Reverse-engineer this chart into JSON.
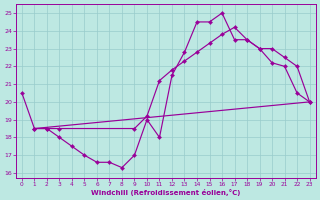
{
  "xlabel": "Windchill (Refroidissement éolien,°C)",
  "bg_color": "#bde8e2",
  "line_color": "#990099",
  "grid_color": "#99cccc",
  "xlim_min": -0.5,
  "xlim_max": 23.5,
  "ylim_min": 15.7,
  "ylim_max": 25.5,
  "xticks": [
    0,
    1,
    2,
    3,
    4,
    5,
    6,
    7,
    8,
    9,
    10,
    11,
    12,
    13,
    14,
    15,
    16,
    17,
    18,
    19,
    20,
    21,
    22,
    23
  ],
  "yticks": [
    16,
    17,
    18,
    19,
    20,
    21,
    22,
    23,
    24,
    25
  ],
  "line1_x": [
    0,
    1,
    2,
    3,
    4,
    5,
    6,
    7,
    8,
    9,
    10,
    11,
    12,
    13,
    14,
    15,
    16,
    17,
    18,
    19,
    20,
    21,
    22,
    23
  ],
  "line1_y": [
    20.5,
    18.5,
    18.5,
    18.0,
    17.5,
    17.0,
    16.6,
    16.6,
    16.3,
    17.0,
    19.0,
    18.0,
    21.5,
    22.8,
    24.5,
    24.5,
    25.0,
    23.5,
    23.5,
    23.0,
    22.2,
    22.0,
    20.5,
    20.0
  ],
  "line2_x": [
    1,
    2,
    3,
    9,
    10,
    11,
    12,
    13,
    14,
    15,
    16,
    17,
    18,
    19,
    20,
    21,
    22,
    23
  ],
  "line2_y": [
    18.5,
    18.5,
    18.5,
    18.5,
    19.2,
    21.2,
    21.8,
    22.3,
    22.8,
    23.3,
    23.8,
    24.2,
    23.5,
    23.0,
    23.0,
    22.5,
    22.0,
    20.0
  ],
  "line3_x": [
    1,
    23
  ],
  "line3_y": [
    18.5,
    20.0
  ]
}
